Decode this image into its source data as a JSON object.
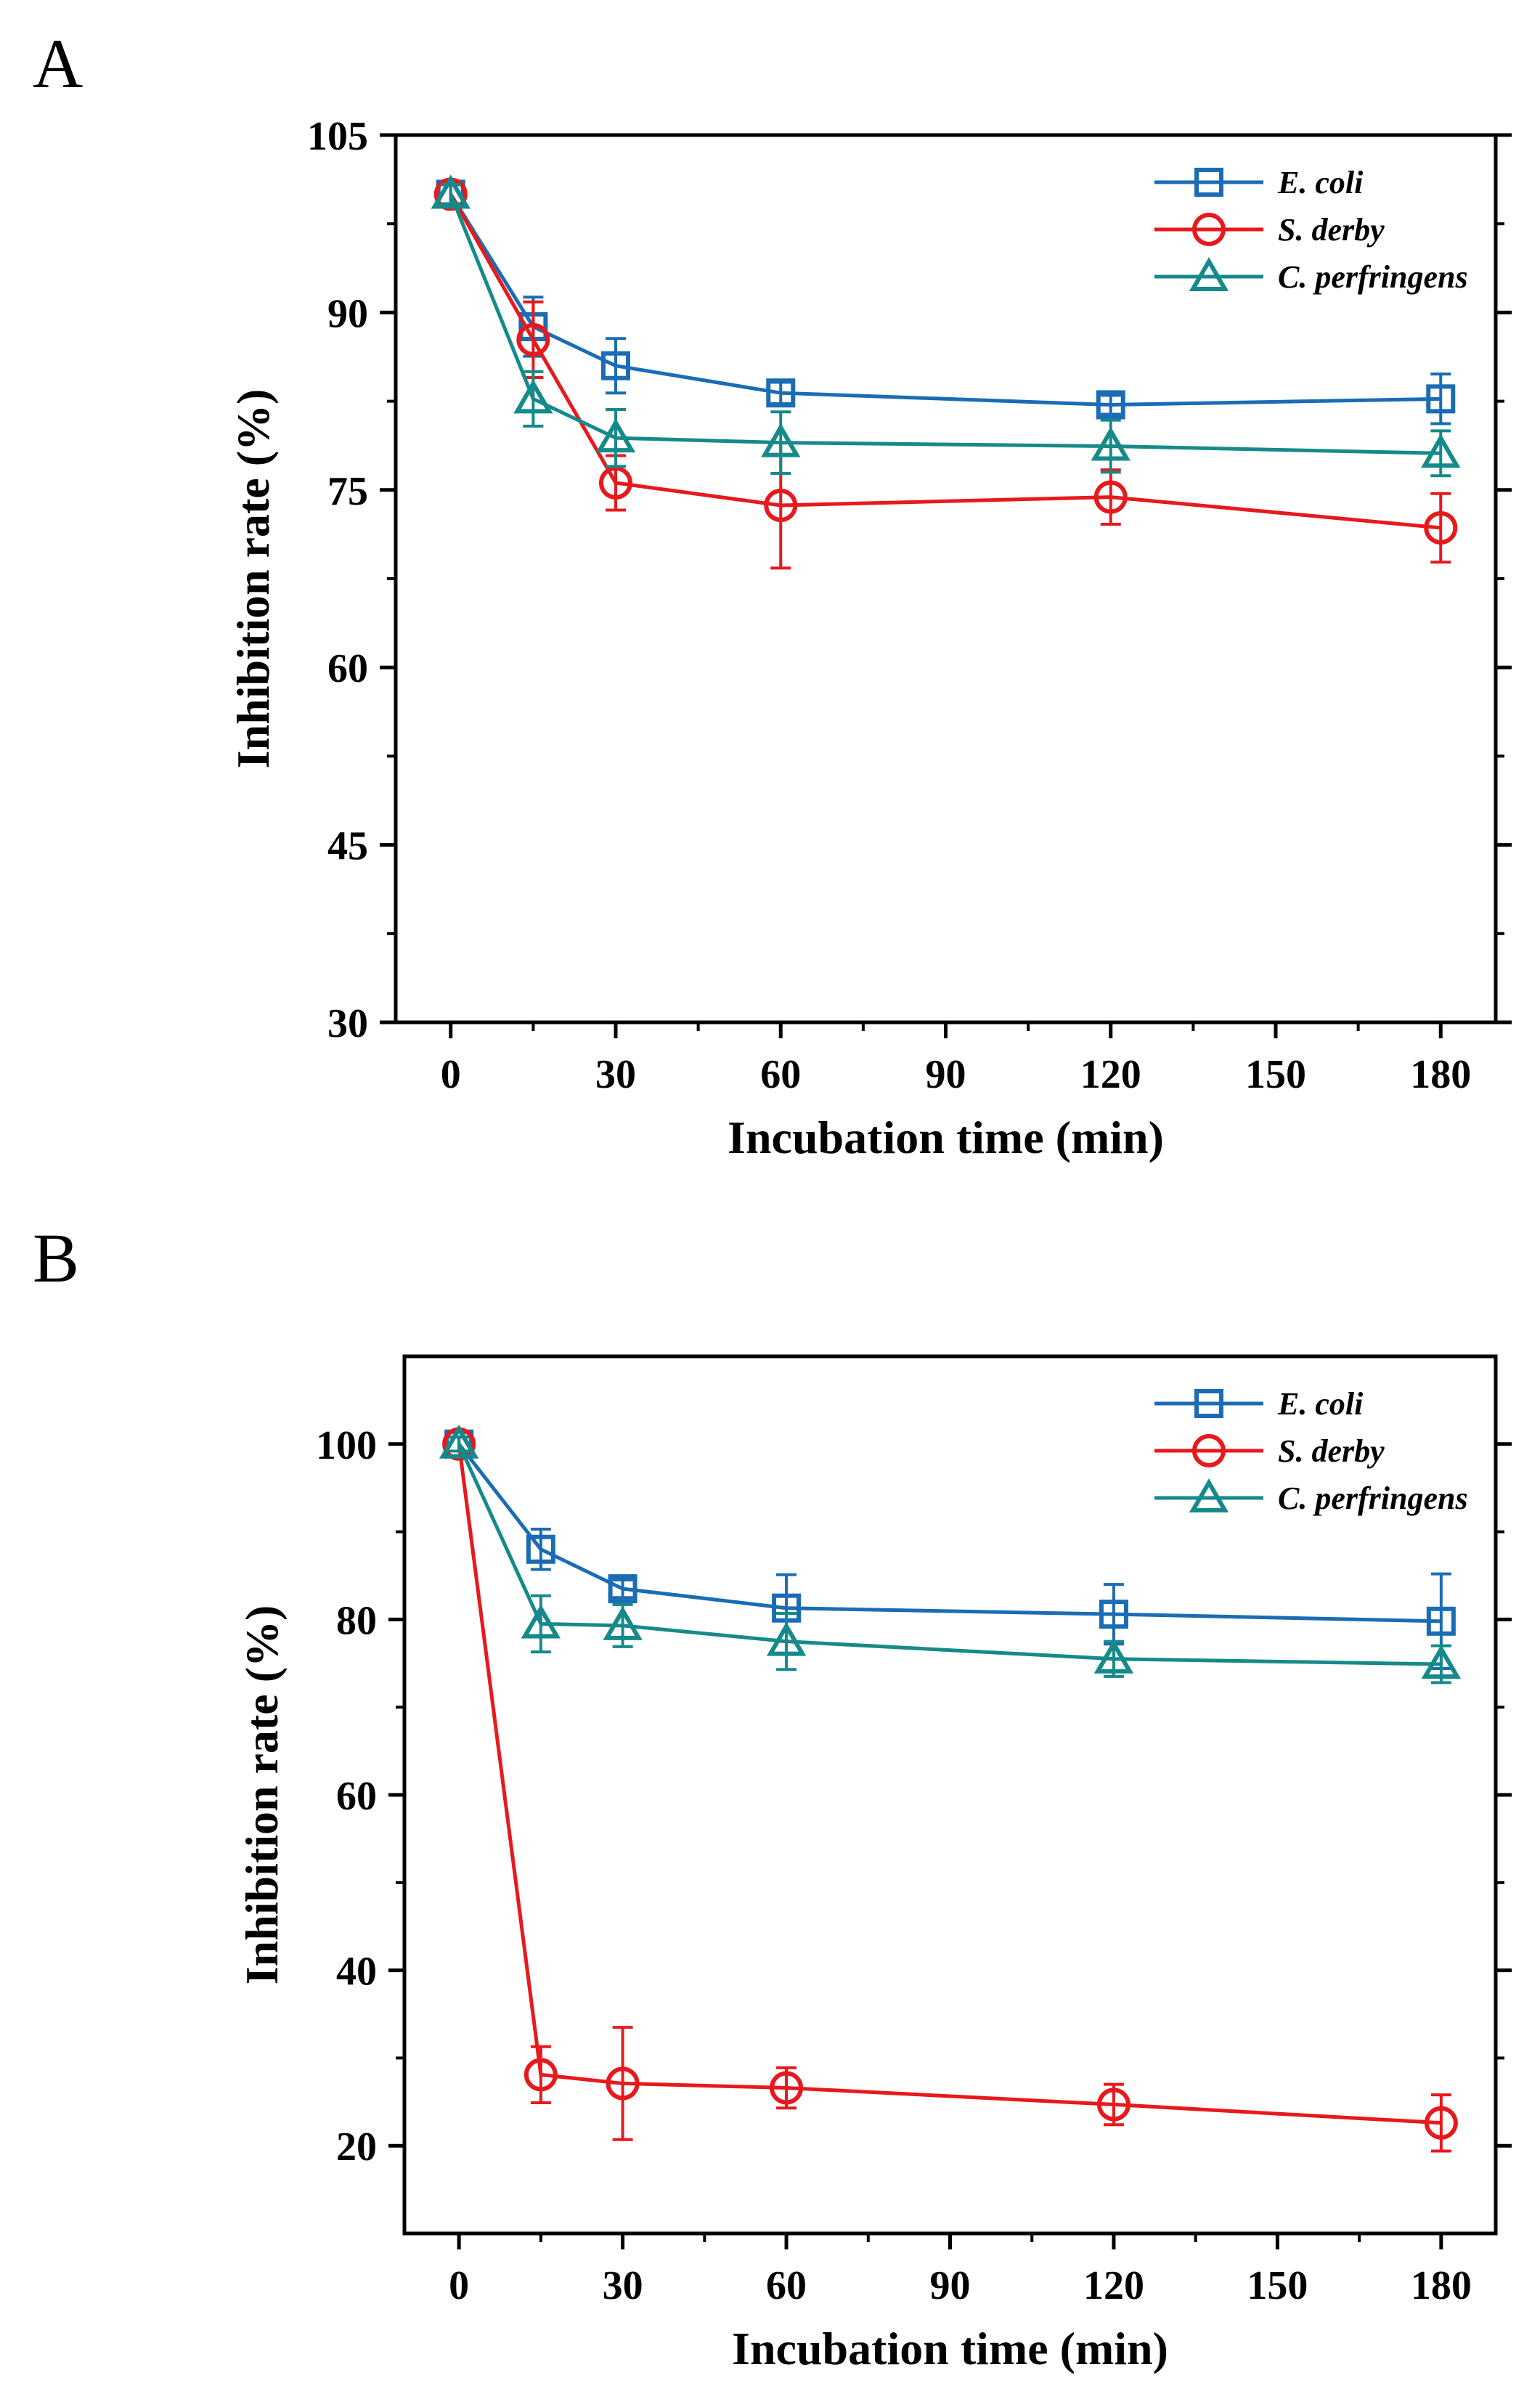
{
  "chart_data": [
    {
      "panel_label": "A",
      "type": "line",
      "xlabel": "Incubation time (min)",
      "ylabel": "Inhibition rate (%)",
      "xlim": [
        -10,
        190
      ],
      "ylim": [
        30,
        105
      ],
      "xticks": [
        0,
        30,
        60,
        90,
        120,
        150,
        180
      ],
      "yticks": [
        30,
        45,
        60,
        75,
        90,
        105
      ],
      "x": [
        0,
        15,
        30,
        60,
        120,
        180
      ],
      "legend": [
        "E. coli",
        "S. derby",
        "C. perfringens"
      ],
      "legend_position": "top-right",
      "series": [
        {
          "name": "E. coli",
          "marker": "square",
          "color": "#1a6cb5",
          "values": [
            100,
            88.8,
            85.5,
            83.2,
            82.2,
            82.7
          ],
          "errors": [
            0.8,
            2.5,
            2.3,
            0.9,
            0.8,
            2.1
          ]
        },
        {
          "name": "S. derby",
          "marker": "circle",
          "color": "#e8191c",
          "values": [
            100,
            87.7,
            75.6,
            73.7,
            74.4,
            71.8
          ],
          "errors": [
            0.8,
            3.2,
            2.3,
            5.3,
            2.3,
            2.9
          ]
        },
        {
          "name": "C. perfringens",
          "marker": "triangle",
          "color": "#168a8a",
          "values": [
            100,
            82.7,
            79.4,
            79.0,
            78.7,
            78.1
          ],
          "errors": [
            0.8,
            2.3,
            2.4,
            2.6,
            2.2,
            1.9
          ]
        }
      ]
    },
    {
      "panel_label": "B",
      "type": "line",
      "xlabel": "Incubation time (min)",
      "ylabel": "Inhibition rate (%)",
      "xlim": [
        -10,
        190
      ],
      "ylim": [
        10,
        110
      ],
      "xticks": [
        0,
        30,
        60,
        90,
        120,
        150,
        180
      ],
      "yticks": [
        20,
        40,
        60,
        80,
        100
      ],
      "x": [
        0,
        15,
        30,
        60,
        120,
        180
      ],
      "legend": [
        "E. coli",
        "S. derby",
        "C. perfringens"
      ],
      "legend_position": "top-right",
      "series": [
        {
          "name": "E. coli",
          "marker": "square",
          "color": "#1a6cb5",
          "values": [
            100,
            88.0,
            83.5,
            81.3,
            80.6,
            79.8
          ],
          "errors": [
            0.8,
            2.3,
            1.0,
            3.8,
            3.4,
            5.4
          ]
        },
        {
          "name": "S. derby",
          "marker": "circle",
          "color": "#e8191c",
          "values": [
            100,
            28.1,
            27.1,
            26.6,
            24.7,
            22.6
          ],
          "errors": [
            0.8,
            3.2,
            6.4,
            2.3,
            2.3,
            3.2
          ]
        },
        {
          "name": "C. perfringens",
          "marker": "triangle",
          "color": "#168a8a",
          "values": [
            100,
            79.5,
            79.3,
            77.5,
            75.5,
            74.9
          ],
          "errors": [
            0.8,
            3.2,
            2.4,
            3.2,
            2.0,
            2.1
          ]
        }
      ]
    }
  ]
}
